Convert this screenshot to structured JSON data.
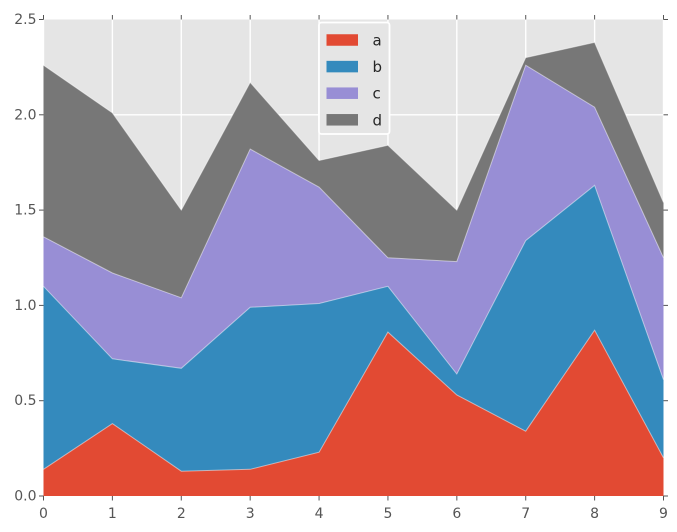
{
  "figure": {
    "background": "#FFFFFF",
    "plot_background": "#E5E5E5",
    "grid_color": "#FFFFFF",
    "tick_color": "#555555",
    "tick_label_color": "#555555",
    "legend_text_color": "#262626",
    "legend_border_color": "#FFFFFF",
    "area_edge_color": "rgba(255,255,255,0.5)"
  },
  "chart_data": {
    "type": "area",
    "stacked": true,
    "title": "",
    "xlabel": "",
    "ylabel": "",
    "x": [
      0,
      1,
      2,
      3,
      4,
      5,
      6,
      7,
      8,
      9
    ],
    "xlim": [
      0,
      9
    ],
    "ylim": [
      0,
      2.5
    ],
    "xtick_labels": [
      "0",
      "1",
      "2",
      "3",
      "4",
      "5",
      "6",
      "7",
      "8",
      "9"
    ],
    "ytick_values": [
      0,
      0.5,
      1.0,
      1.5,
      2.0,
      2.5
    ],
    "ytick_labels": [
      "0.0",
      "0.5",
      "1.0",
      "1.5",
      "2.0",
      "2.5"
    ],
    "grid": true,
    "legend_position": "upper center",
    "series": [
      {
        "name": "a",
        "color": "#E24A33",
        "values": [
          0.14,
          0.38,
          0.13,
          0.14,
          0.23,
          0.86,
          0.53,
          0.34,
          0.87,
          0.2
        ]
      },
      {
        "name": "b",
        "color": "#348ABD",
        "values": [
          0.96,
          0.34,
          0.54,
          0.85,
          0.78,
          0.24,
          0.11,
          1.0,
          0.76,
          0.41
        ]
      },
      {
        "name": "c",
        "color": "#988ED5",
        "values": [
          0.26,
          0.45,
          0.37,
          0.83,
          0.61,
          0.15,
          0.59,
          0.92,
          0.41,
          0.64
        ]
      },
      {
        "name": "d",
        "color": "#777777",
        "values": [
          0.9,
          0.84,
          0.46,
          0.35,
          0.14,
          0.59,
          0.27,
          0.04,
          0.34,
          0.29
        ]
      }
    ],
    "stacked_tops": {
      "a_top": [
        0.14,
        0.38,
        0.13,
        0.14,
        0.23,
        0.86,
        0.53,
        0.34,
        0.87,
        0.2
      ],
      "b_top": [
        1.1,
        0.72,
        0.67,
        0.99,
        1.01,
        1.1,
        0.64,
        1.34,
        1.63,
        0.61
      ],
      "c_top": [
        1.36,
        1.17,
        1.04,
        1.82,
        1.62,
        1.25,
        1.23,
        2.26,
        2.04,
        1.25
      ],
      "d_top": [
        2.26,
        2.01,
        1.5,
        2.17,
        1.76,
        1.84,
        1.5,
        2.3,
        2.38,
        1.54
      ]
    }
  }
}
